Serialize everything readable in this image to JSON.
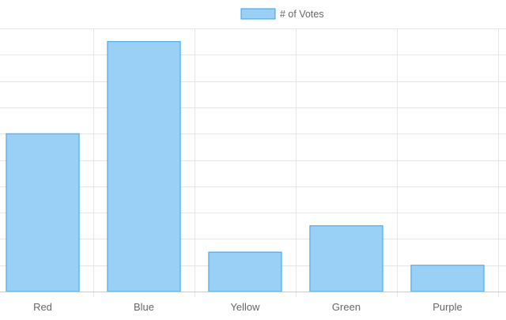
{
  "chart_data": {
    "type": "bar",
    "categories": [
      "Red",
      "Blue",
      "Yellow",
      "Green",
      "Purple"
    ],
    "series": [
      {
        "name": "# of Votes",
        "values": [
          12,
          19,
          3,
          5,
          2
        ]
      }
    ],
    "ylim": [
      0,
      20
    ],
    "grid": true,
    "legend_position": "top-center",
    "colors": {
      "bar_fill": "#9ad0f5",
      "bar_stroke": "#36a2eb",
      "grid": "#e5e5e5",
      "axis": "#cccccc",
      "text": "#666666"
    }
  }
}
